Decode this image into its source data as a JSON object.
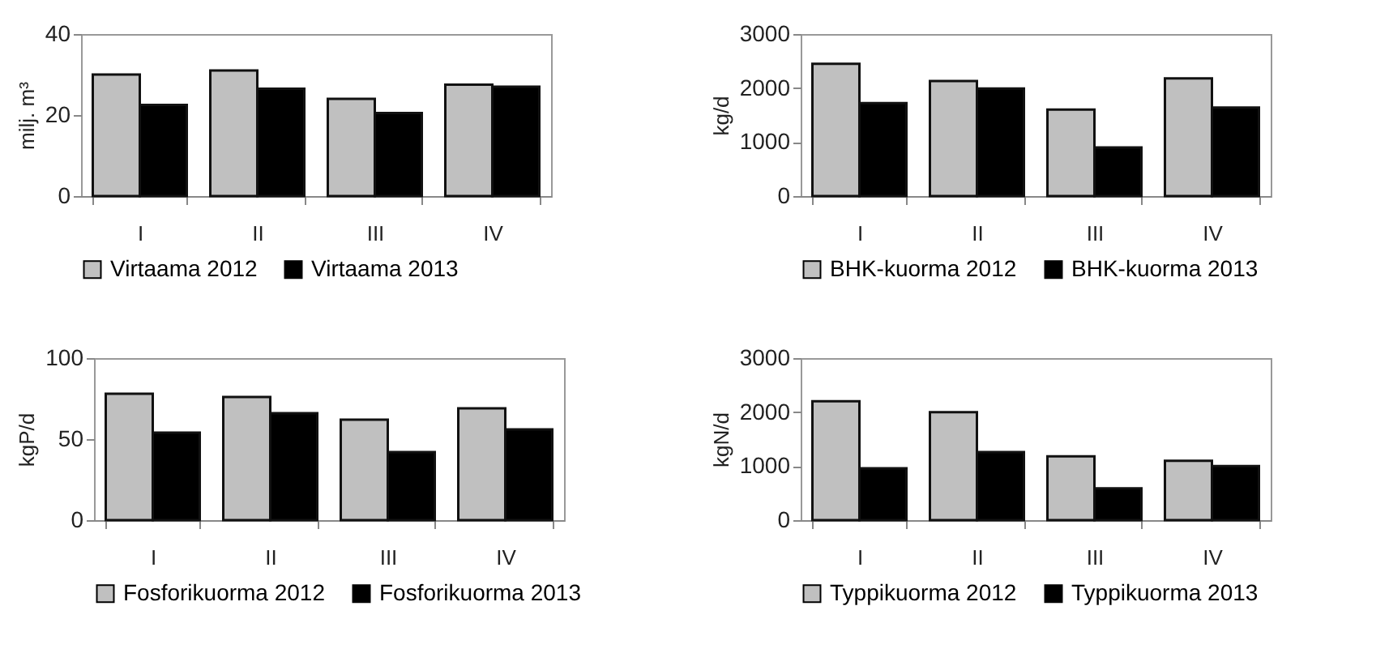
{
  "chart_data": [
    {
      "type": "bar",
      "ylabel": "milj. m³",
      "categories": [
        "I",
        "II",
        "III",
        "IV"
      ],
      "series": [
        {
          "name": "Virtaama 2012",
          "color": "#c0c0c0",
          "values": [
            30,
            31,
            24,
            27.5
          ]
        },
        {
          "name": "Virtaama 2013",
          "color": "#000000",
          "values": [
            22.5,
            26.5,
            20.5,
            27
          ]
        }
      ],
      "ylim": [
        0,
        40
      ],
      "yticks": [
        0,
        20,
        40
      ],
      "grid": false,
      "legend": "bottom"
    },
    {
      "type": "bar",
      "ylabel": "kg/d",
      "categories": [
        "I",
        "II",
        "III",
        "IV"
      ],
      "series": [
        {
          "name": "BHK-kuorma 2012",
          "color": "#c0c0c0",
          "values": [
            2450,
            2130,
            1600,
            2180
          ]
        },
        {
          "name": "BHK-kuorma 2013",
          "color": "#000000",
          "values": [
            1720,
            1990,
            900,
            1640
          ]
        }
      ],
      "ylim": [
        0,
        3000
      ],
      "yticks": [
        0,
        1000,
        2000,
        3000
      ],
      "grid": false,
      "legend": "bottom"
    },
    {
      "type": "bar",
      "ylabel": "kgP/d",
      "categories": [
        "I",
        "II",
        "III",
        "IV"
      ],
      "series": [
        {
          "name": "Fosforikuorma 2012",
          "color": "#c0c0c0",
          "values": [
            78,
            76,
            62,
            69
          ]
        },
        {
          "name": "Fosforikuorma 2013",
          "color": "#000000",
          "values": [
            54,
            66,
            42,
            56
          ]
        }
      ],
      "ylim": [
        0,
        100
      ],
      "yticks": [
        0,
        50,
        100
      ],
      "grid": false,
      "legend": "bottom"
    },
    {
      "type": "bar",
      "ylabel": "kgN/d",
      "categories": [
        "I",
        "II",
        "III",
        "IV"
      ],
      "series": [
        {
          "name": "Typpikuorma 2012",
          "color": "#c0c0c0",
          "values": [
            2200,
            2000,
            1180,
            1100
          ]
        },
        {
          "name": "Typpikuorma 2013",
          "color": "#000000",
          "values": [
            960,
            1260,
            590,
            1000
          ]
        }
      ],
      "ylim": [
        0,
        3000
      ],
      "yticks": [
        0,
        1000,
        2000,
        3000
      ],
      "grid": false,
      "legend": "bottom"
    }
  ]
}
